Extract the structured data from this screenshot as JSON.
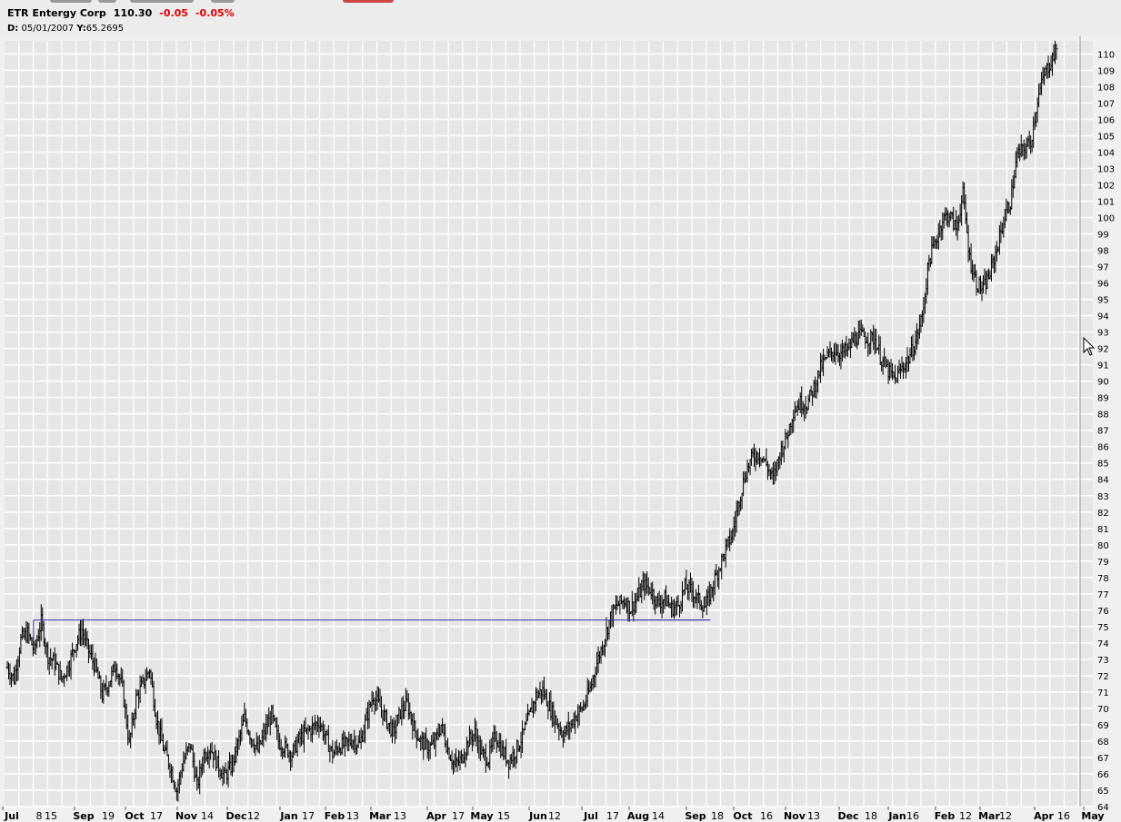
{
  "header": {
    "symbol": "ETR",
    "name": "Entergy Corp",
    "last": "110.30",
    "change": "-0.05",
    "change_pct": "-0.05%",
    "crosshair_date_label": "D:",
    "crosshair_date": "05/01/2007",
    "crosshair_value_label": "Y:",
    "crosshair_value": "65.2695"
  },
  "colors": {
    "plot_bg": "#e6e6e6",
    "grid": "#ffffff",
    "bars": "#000000",
    "trendline": "#3a2fb0",
    "negative": "#e00000"
  },
  "chart_data": {
    "type": "ohlc-bar",
    "ylim": [
      64,
      110.8
    ],
    "yticks": [
      64,
      65,
      66,
      67,
      68,
      69,
      70,
      71,
      72,
      73,
      74,
      75,
      76,
      77,
      78,
      79,
      80,
      81,
      82,
      83,
      84,
      85,
      86,
      87,
      88,
      89,
      90,
      91,
      92,
      93,
      94,
      95,
      96,
      97,
      98,
      99,
      100,
      101,
      102,
      103,
      104,
      105,
      106,
      107,
      108,
      109,
      110
    ],
    "xticks": [
      {
        "label": "Jul",
        "bold": true
      },
      {
        "label": "8",
        "bold": false
      },
      {
        "label": "15",
        "bold": false
      },
      {
        "label": "Sep",
        "bold": true
      },
      {
        "label": "19",
        "bold": false
      },
      {
        "label": "Oct",
        "bold": true
      },
      {
        "label": "17",
        "bold": false
      },
      {
        "label": "Nov",
        "bold": true
      },
      {
        "label": "14",
        "bold": false
      },
      {
        "label": "Dec",
        "bold": true
      },
      {
        "label": "12",
        "bold": false
      },
      {
        "label": "Jan",
        "bold": true
      },
      {
        "label": "17",
        "bold": false
      },
      {
        "label": "Feb",
        "bold": true
      },
      {
        "label": "13",
        "bold": false
      },
      {
        "label": "Mar",
        "bold": true
      },
      {
        "label": "13",
        "bold": false
      },
      {
        "label": "Apr",
        "bold": true
      },
      {
        "label": "17",
        "bold": false
      },
      {
        "label": "May",
        "bold": true
      },
      {
        "label": "15",
        "bold": false
      },
      {
        "label": "Jun",
        "bold": true
      },
      {
        "label": "12",
        "bold": false
      },
      {
        "label": "Jul",
        "bold": true
      },
      {
        "label": "17",
        "bold": false
      },
      {
        "label": "Aug",
        "bold": true
      },
      {
        "label": "14",
        "bold": false
      },
      {
        "label": "Sep",
        "bold": true
      },
      {
        "label": "18",
        "bold": false
      },
      {
        "label": "Oct",
        "bold": true
      },
      {
        "label": "16",
        "bold": false
      },
      {
        "label": "Nov",
        "bold": true
      },
      {
        "label": "13",
        "bold": false
      },
      {
        "label": "Dec",
        "bold": true
      },
      {
        "label": "18",
        "bold": false
      },
      {
        "label": "Jan",
        "bold": true
      },
      {
        "label": "16",
        "bold": false
      },
      {
        "label": "Feb",
        "bold": true
      },
      {
        "label": "12",
        "bold": false
      },
      {
        "label": "Mar",
        "bold": true
      },
      {
        "label": "12",
        "bold": false
      },
      {
        "label": "Apr",
        "bold": true
      },
      {
        "label": "16",
        "bold": false
      },
      {
        "label": "May",
        "bold": true
      }
    ],
    "price_path": [
      [
        0,
        72.5
      ],
      [
        5,
        71.8
      ],
      [
        10,
        74.2
      ],
      [
        15,
        74.6
      ],
      [
        20,
        73.5
      ],
      [
        25,
        75.3
      ],
      [
        30,
        73.2
      ],
      [
        35,
        72.8
      ],
      [
        40,
        71.8
      ],
      [
        45,
        72.6
      ],
      [
        50,
        73.9
      ],
      [
        55,
        74.8
      ],
      [
        60,
        73.5
      ],
      [
        65,
        72.5
      ],
      [
        70,
        70.8
      ],
      [
        75,
        71.6
      ],
      [
        80,
        72.7
      ],
      [
        85,
        71.2
      ],
      [
        90,
        67.8
      ],
      [
        95,
        70.6
      ],
      [
        100,
        71.5
      ],
      [
        105,
        72.4
      ],
      [
        110,
        69.4
      ],
      [
        115,
        67.6
      ],
      [
        120,
        66.5
      ],
      [
        125,
        65.0
      ],
      [
        130,
        66.8
      ],
      [
        135,
        67.8
      ],
      [
        140,
        65.2
      ],
      [
        145,
        67.2
      ],
      [
        150,
        67.6
      ],
      [
        155,
        66.6
      ],
      [
        160,
        65.8
      ],
      [
        165,
        66.4
      ],
      [
        170,
        67.8
      ],
      [
        175,
        69.4
      ],
      [
        180,
        68.2
      ],
      [
        185,
        67.4
      ],
      [
        190,
        68.6
      ],
      [
        195,
        69.6
      ],
      [
        200,
        68.0
      ],
      [
        205,
        67.6
      ],
      [
        210,
        67.2
      ],
      [
        215,
        68.1
      ],
      [
        220,
        68.5
      ],
      [
        225,
        68.8
      ],
      [
        230,
        69.2
      ],
      [
        235,
        68.2
      ],
      [
        240,
        67.2
      ],
      [
        245,
        67.7
      ],
      [
        250,
        67.8
      ],
      [
        255,
        68.1
      ],
      [
        260,
        67.8
      ],
      [
        265,
        69.4
      ],
      [
        270,
        70.8
      ],
      [
        275,
        70.1
      ],
      [
        280,
        69.2
      ],
      [
        285,
        68.5
      ],
      [
        290,
        69.8
      ],
      [
        295,
        70.3
      ],
      [
        300,
        68.8
      ],
      [
        305,
        68.0
      ],
      [
        310,
        67.6
      ],
      [
        315,
        67.8
      ],
      [
        320,
        69.0
      ],
      [
        325,
        67.5
      ],
      [
        330,
        66.5
      ],
      [
        335,
        66.9
      ],
      [
        340,
        68.0
      ],
      [
        345,
        68.5
      ],
      [
        350,
        67.2
      ],
      [
        355,
        66.9
      ],
      [
        360,
        68.4
      ],
      [
        365,
        67.4
      ],
      [
        370,
        66.8
      ],
      [
        375,
        67.4
      ],
      [
        380,
        68.3
      ],
      [
        385,
        69.5
      ],
      [
        390,
        70.8
      ],
      [
        395,
        71.1
      ],
      [
        400,
        70.1
      ],
      [
        405,
        69.2
      ],
      [
        410,
        68.4
      ],
      [
        415,
        68.9
      ],
      [
        420,
        69.6
      ],
      [
        425,
        70.1
      ],
      [
        430,
        71.2
      ],
      [
        435,
        72.8
      ],
      [
        440,
        74.1
      ],
      [
        445,
        75.6
      ],
      [
        450,
        76.3
      ],
      [
        455,
        76.6
      ],
      [
        460,
        76.1
      ],
      [
        465,
        76.8
      ],
      [
        470,
        77.6
      ],
      [
        475,
        77.2
      ],
      [
        480,
        76.4
      ],
      [
        485,
        76.7
      ],
      [
        490,
        76.1
      ],
      [
        495,
        76.3
      ],
      [
        500,
        77.4
      ],
      [
        505,
        77.2
      ],
      [
        510,
        76.6
      ],
      [
        515,
        76.2
      ],
      [
        520,
        77.4
      ],
      [
        525,
        78.6
      ],
      [
        530,
        79.7
      ],
      [
        535,
        80.7
      ],
      [
        540,
        82.8
      ],
      [
        545,
        84.5
      ],
      [
        550,
        85.4
      ],
      [
        555,
        85.6
      ],
      [
        560,
        84.9
      ],
      [
        565,
        84.0
      ],
      [
        570,
        85.6
      ],
      [
        575,
        86.6
      ],
      [
        580,
        88.2
      ],
      [
        585,
        88.7
      ],
      [
        590,
        88.6
      ],
      [
        595,
        89.6
      ],
      [
        600,
        90.8
      ],
      [
        605,
        91.5
      ],
      [
        610,
        91.9
      ],
      [
        615,
        91.7
      ],
      [
        620,
        91.9
      ],
      [
        625,
        92.6
      ],
      [
        630,
        92.8
      ],
      [
        635,
        92.6
      ],
      [
        640,
        92.6
      ],
      [
        645,
        91.3
      ],
      [
        650,
        90.6
      ],
      [
        655,
        90.1
      ],
      [
        660,
        90.8
      ],
      [
        665,
        91.4
      ],
      [
        670,
        92.4
      ],
      [
        675,
        94.0
      ],
      [
        680,
        97.4
      ],
      [
        685,
        98.6
      ],
      [
        690,
        99.9
      ],
      [
        695,
        100.2
      ],
      [
        700,
        99.3
      ],
      [
        705,
        101.4
      ],
      [
        710,
        97.5
      ],
      [
        715,
        96.0
      ],
      [
        720,
        95.6
      ],
      [
        725,
        96.6
      ],
      [
        730,
        98.1
      ],
      [
        735,
        99.8
      ],
      [
        740,
        101.0
      ],
      [
        745,
        103.8
      ],
      [
        750,
        104.2
      ],
      [
        755,
        104.6
      ],
      [
        760,
        107.2
      ],
      [
        765,
        108.7
      ],
      [
        770,
        109.6
      ],
      [
        774,
        110.3
      ]
    ],
    "trendline": {
      "y": 75.4,
      "x1_frac": 0.0266,
      "x2_frac": 0.6484,
      "stub_y": 75.4,
      "stub_x1_frac": 0.5788,
      "stub_x2_frac": 0.6484
    }
  }
}
